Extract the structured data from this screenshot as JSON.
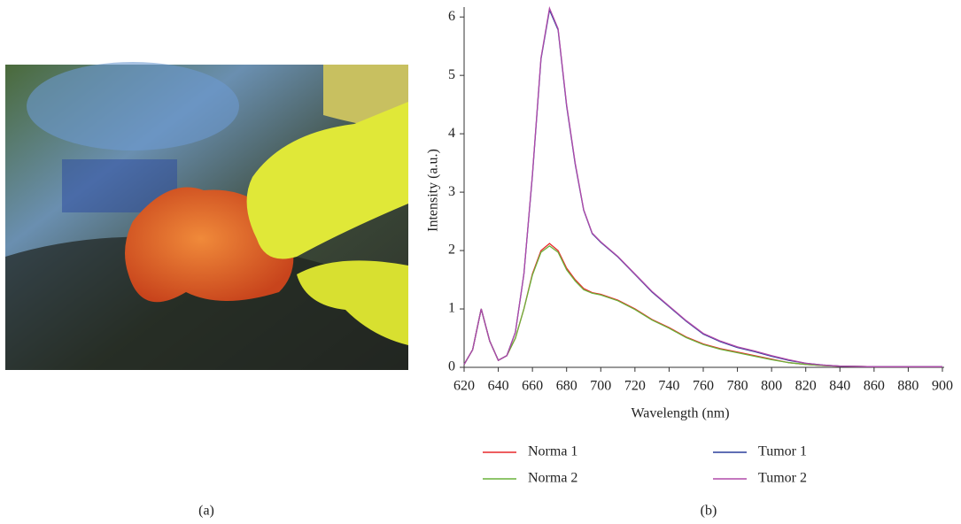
{
  "panel_labels": [
    "(a)",
    "(b)"
  ],
  "chart_data": {
    "type": "line",
    "xlabel": "Wavelength (nm)",
    "ylabel": "Intensity (a.u.)",
    "x": [
      620,
      625,
      630,
      635,
      640,
      645,
      650,
      655,
      660,
      665,
      670,
      675,
      680,
      685,
      690,
      695,
      700,
      710,
      720,
      730,
      740,
      750,
      760,
      770,
      780,
      790,
      800,
      810,
      820,
      830,
      840,
      860,
      880,
      900
    ],
    "series": [
      {
        "name": "Norma 1",
        "color": "#e8282a",
        "values": [
          0.05,
          0.3,
          1.0,
          0.45,
          0.12,
          0.2,
          0.5,
          1.0,
          1.6,
          2.0,
          2.12,
          2.0,
          1.7,
          1.5,
          1.35,
          1.28,
          1.25,
          1.15,
          1.0,
          0.82,
          0.68,
          0.52,
          0.4,
          0.32,
          0.26,
          0.2,
          0.14,
          0.08,
          0.05,
          0.03,
          0.02,
          0.01,
          0.01,
          0.01
        ]
      },
      {
        "name": "Norma 2",
        "color": "#6ab23a",
        "values": [
          0.05,
          0.3,
          1.0,
          0.45,
          0.12,
          0.2,
          0.5,
          1.0,
          1.58,
          1.97,
          2.08,
          1.97,
          1.67,
          1.48,
          1.33,
          1.27,
          1.24,
          1.14,
          0.99,
          0.81,
          0.67,
          0.51,
          0.39,
          0.31,
          0.25,
          0.19,
          0.13,
          0.08,
          0.05,
          0.03,
          0.02,
          0.01,
          0.01,
          0.01
        ]
      },
      {
        "name": "Tumor 1",
        "color": "#2a3f9c",
        "values": [
          0.05,
          0.3,
          1.0,
          0.45,
          0.12,
          0.2,
          0.6,
          1.6,
          3.28,
          5.28,
          6.12,
          5.78,
          4.48,
          3.48,
          2.69,
          2.29,
          2.14,
          1.89,
          1.59,
          1.29,
          1.04,
          0.79,
          0.57,
          0.44,
          0.34,
          0.27,
          0.19,
          0.12,
          0.07,
          0.04,
          0.02,
          0.01,
          0.01,
          0.01
        ]
      },
      {
        "name": "Tumor 2",
        "color": "#b04aa8",
        "values": [
          0.05,
          0.3,
          1.0,
          0.45,
          0.12,
          0.2,
          0.6,
          1.6,
          3.3,
          5.3,
          6.15,
          5.8,
          4.5,
          3.5,
          2.7,
          2.3,
          2.15,
          1.9,
          1.6,
          1.3,
          1.05,
          0.8,
          0.58,
          0.45,
          0.35,
          0.28,
          0.2,
          0.13,
          0.07,
          0.04,
          0.02,
          0.01,
          0.01,
          0.01
        ]
      }
    ],
    "xlim": [
      620,
      900
    ],
    "ylim": [
      0,
      6.2
    ],
    "xticks": [
      620,
      640,
      660,
      680,
      700,
      720,
      740,
      760,
      780,
      800,
      820,
      840,
      860,
      880,
      900
    ],
    "yticks": [
      0,
      1,
      2,
      3,
      4,
      5,
      6
    ]
  }
}
